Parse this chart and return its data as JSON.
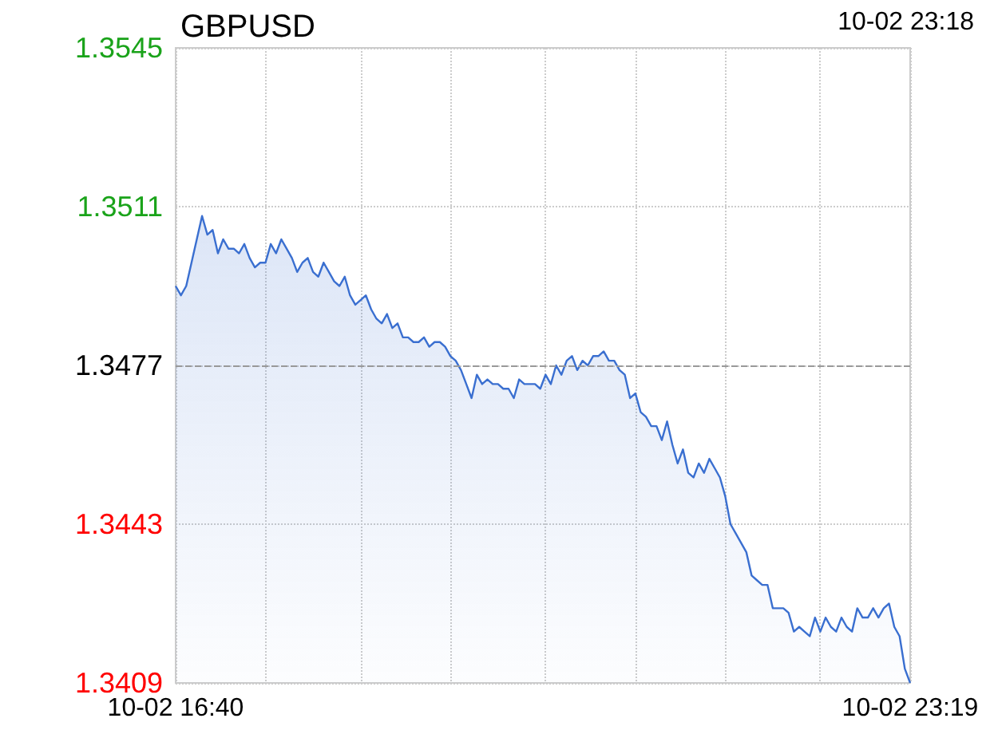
{
  "chart_data": {
    "type": "area",
    "title": "GBPUSD",
    "annotations": [
      "10-02 23:18"
    ],
    "categories": [
      "10-02 16:40",
      null,
      null,
      null,
      null,
      null,
      null,
      null,
      null,
      null,
      null,
      null,
      null,
      null,
      null,
      null,
      null,
      null,
      null,
      null,
      null,
      null,
      null,
      null,
      null,
      null,
      null,
      null,
      null,
      null,
      null,
      null,
      null,
      null,
      null,
      null,
      null,
      null,
      null,
      null,
      null,
      null,
      null,
      null,
      null,
      null,
      null,
      null,
      null,
      null,
      null,
      null,
      null,
      null,
      null,
      null,
      null,
      null,
      null,
      null,
      null,
      null,
      null,
      null,
      null,
      null,
      null,
      null,
      null,
      null,
      null,
      null,
      null,
      null,
      null,
      null,
      null,
      null,
      null,
      null,
      null,
      null,
      null,
      null,
      null,
      null,
      null,
      null,
      null,
      null,
      null,
      null,
      null,
      null,
      null,
      null,
      null,
      null,
      null,
      null,
      null,
      null,
      null,
      null,
      null,
      null,
      null,
      null,
      null,
      null,
      null,
      null,
      null,
      null,
      null,
      null,
      null,
      null,
      null,
      null,
      null,
      null,
      null,
      null,
      null,
      null,
      null,
      null,
      null,
      null,
      null,
      null,
      null,
      null,
      null,
      null,
      null,
      null,
      null,
      "10-02 23:19"
    ],
    "series": [
      {
        "color": "#3a6fd0",
        "values": [
          1.3494,
          1.3492,
          1.3494,
          1.3499,
          1.3504,
          1.3509,
          1.3505,
          1.3506,
          1.3501,
          1.3504,
          1.3502,
          1.3502,
          1.3501,
          1.3503,
          1.35,
          1.3498,
          1.3499,
          1.3499,
          1.3503,
          1.3501,
          1.3504,
          1.3502,
          1.35,
          1.3497,
          1.3499,
          1.35,
          1.3497,
          1.3496,
          1.3499,
          1.3497,
          1.3495,
          1.3494,
          1.3496,
          1.3492,
          1.349,
          1.3491,
          1.3492,
          1.3489,
          1.3487,
          1.3486,
          1.3488,
          1.3485,
          1.3486,
          1.3483,
          1.3483,
          1.3482,
          1.3482,
          1.3483,
          1.3481,
          1.3482,
          1.3482,
          1.3481,
          1.3479,
          1.3478,
          1.3476,
          1.3473,
          1.347,
          1.3475,
          1.3473,
          1.3474,
          1.3473,
          1.3473,
          1.3472,
          1.3472,
          1.347,
          1.3474,
          1.3473,
          1.3473,
          1.3473,
          1.3472,
          1.3475,
          1.3473,
          1.3477,
          1.3475,
          1.3478,
          1.3479,
          1.3476,
          1.3478,
          1.3477,
          1.3479,
          1.3479,
          1.348,
          1.3478,
          1.3478,
          1.3476,
          1.3475,
          1.347,
          1.3471,
          1.3467,
          1.3466,
          1.3464,
          1.3464,
          1.3461,
          1.3465,
          1.346,
          1.3456,
          1.3459,
          1.3454,
          1.3453,
          1.3456,
          1.3454,
          1.3457,
          1.3455,
          1.3453,
          1.3449,
          1.3443,
          1.3441,
          1.3439,
          1.3437,
          1.3432,
          1.3431,
          1.343,
          1.343,
          1.3425,
          1.3425,
          1.3425,
          1.3424,
          1.342,
          1.3421,
          1.342,
          1.3419,
          1.3423,
          1.342,
          1.3423,
          1.3421,
          1.342,
          1.3423,
          1.3421,
          1.342,
          1.3425,
          1.3423,
          1.3423,
          1.3425,
          1.3423,
          1.3425,
          1.3426,
          1.3421,
          1.3419,
          1.3412,
          1.3409
        ]
      }
    ],
    "ylim": [
      1.3409,
      1.3545
    ],
    "yticks": [
      1.3409,
      1.3443,
      1.3477,
      1.3511,
      1.3545
    ],
    "grid": true,
    "ref_lines": [
      {
        "axis": "y",
        "value": 1.3477
      }
    ]
  }
}
